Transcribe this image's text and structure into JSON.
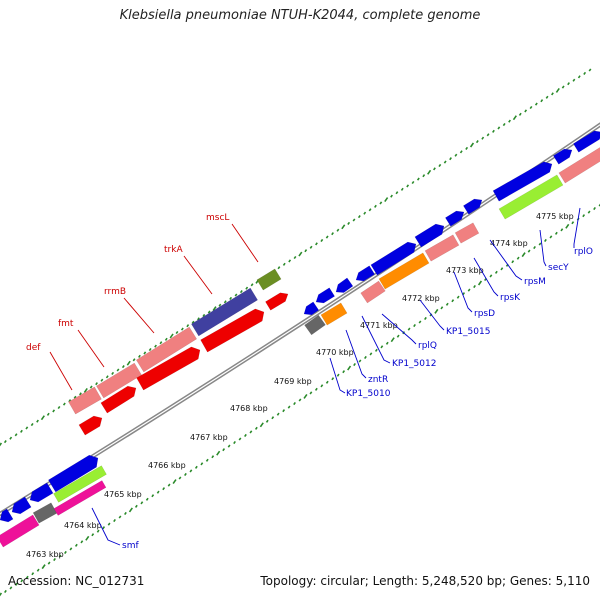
{
  "header": {
    "title": "Klebsiella pneumoniae NTUH-K2044, complete genome"
  },
  "footer": {
    "accession": "Accession: NC_012731",
    "summary": "Topology: circular; Length: 5,248,520 bp; Genes: 5,110"
  },
  "colors": {
    "backbone": "#888888",
    "tick": "#2a8a2a",
    "outer_label": "#cc0000",
    "inner_label": "#0000cc",
    "leader_outer": "#cc0000",
    "leader_inner": "#0000cc",
    "blue_gene": "#0000e0",
    "red_gene": "#ee0000",
    "pink_gene": "#f08080",
    "navy_gene": "#4040a0",
    "olive_gene": "#6b8e23",
    "orange_gene": "#ff8c00",
    "gray_gene": "#666666",
    "lime_gene": "#99ee33",
    "magenta_gene": "#ee1199"
  },
  "ticks": [
    {
      "label": "4763 kbp"
    },
    {
      "label": "4764 kbp"
    },
    {
      "label": "4765 kbp"
    },
    {
      "label": "4766 kbp"
    },
    {
      "label": "4767 kbp"
    },
    {
      "label": "4768 kbp"
    },
    {
      "label": "4769 kbp"
    },
    {
      "label": "4770 kbp"
    },
    {
      "label": "4771 kbp"
    },
    {
      "label": "4772 kbp"
    },
    {
      "label": "4773 kbp"
    },
    {
      "label": "4774 kbp"
    },
    {
      "label": "4775 kbp"
    }
  ],
  "outer_labels": [
    {
      "text": "def"
    },
    {
      "text": "fmt"
    },
    {
      "text": "rrmB"
    },
    {
      "text": "trkA"
    },
    {
      "text": "mscL"
    }
  ],
  "inner_labels": [
    {
      "text": "smf"
    },
    {
      "text": "KP1_5010"
    },
    {
      "text": "zntR"
    },
    {
      "text": "KP1_5012"
    },
    {
      "text": "rplQ"
    },
    {
      "text": "KP1_5015"
    },
    {
      "text": "rpsD"
    },
    {
      "text": "rpsK"
    },
    {
      "text": "rpsM"
    },
    {
      "text": "secY"
    },
    {
      "text": "rplO"
    }
  ]
}
